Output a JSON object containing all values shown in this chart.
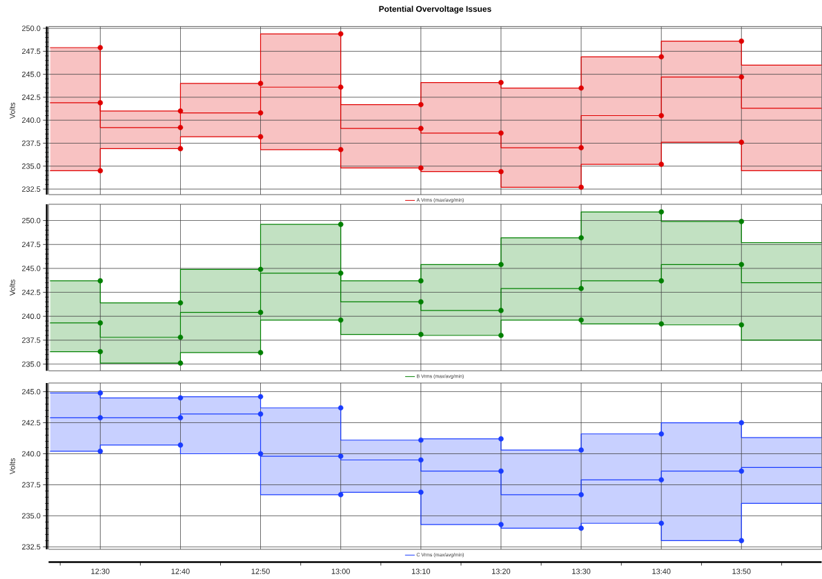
{
  "chart_data": [
    {
      "type": "step",
      "title": "Potential Overvoltage Issues",
      "ylabel": "Volts",
      "x": [
        12.396,
        12.5,
        12.6667,
        12.8333,
        13,
        13.1667,
        13.3333,
        13.5,
        13.6667,
        13.8333,
        14
      ],
      "series": [
        {
          "color": "#e00000",
          "values": [
            247.9,
            247.9,
            241.0,
            244.0,
            249.4,
            241.7,
            244.1,
            243.5,
            246.9,
            248.6,
            246.0
          ]
        },
        {
          "name": "A Vrms (max/avg/min)",
          "color": "#e00000",
          "values": [
            241.9,
            241.9,
            239.2,
            240.8,
            243.6,
            239.1,
            238.6,
            237.0,
            240.5,
            244.7,
            241.3
          ],
          "upper": [
            247.9,
            247.9,
            241.0,
            244.0,
            249.4,
            241.7,
            244.1,
            243.5,
            246.9,
            248.6,
            246.0
          ],
          "lower": [
            234.5,
            234.5,
            236.9,
            238.2,
            236.8,
            234.8,
            234.4,
            232.7,
            235.2,
            237.6,
            234.5
          ]
        },
        {
          "color": "#e00000",
          "values": [
            234.5,
            234.5,
            236.9,
            238.2,
            236.8,
            234.8,
            234.4,
            232.7,
            235.2,
            237.6,
            234.5
          ]
        }
      ],
      "xlim": [
        12.3925,
        14
      ],
      "ylim": [
        231.9,
        250.2
      ],
      "xticks": [
        {
          "value": 12.5,
          "label": null
        },
        {
          "value": 12.6667,
          "label": null
        },
        {
          "value": 12.8333,
          "label": null
        },
        {
          "value": 13,
          "label": null
        },
        {
          "value": 13.1667,
          "label": null
        },
        {
          "value": 13.3333,
          "label": null
        },
        {
          "value": 13.5,
          "label": null
        },
        {
          "value": 13.6667,
          "label": null
        },
        {
          "value": 13.8333,
          "label": null
        }
      ],
      "yticks": [
        232.5,
        {
          "value": 235,
          "label": "235.0"
        },
        237.5,
        {
          "value": 240,
          "label": "240.0"
        },
        242.5,
        {
          "value": 245,
          "label": "245.0"
        },
        247.5,
        {
          "value": 250,
          "label": "250.0"
        }
      ],
      "grid": true,
      "legend": "bottom",
      "marker": "circle",
      "tick_labels": "y"
    },
    {
      "type": "step",
      "ylabel": "Volts",
      "x": [
        12.396,
        12.5,
        12.6667,
        12.8333,
        13,
        13.1667,
        13.3333,
        13.5,
        13.6667,
        13.8333,
        14
      ],
      "series": [
        {
          "color": "#008000",
          "values": [
            243.7,
            243.7,
            241.4,
            244.9,
            249.6,
            243.7,
            245.4,
            248.2,
            250.9,
            249.9,
            247.7
          ]
        },
        {
          "name": "B Vrms (max/avg/min)",
          "color": "#008000",
          "values": [
            239.3,
            239.3,
            237.8,
            240.4,
            244.5,
            241.5,
            240.6,
            242.9,
            243.7,
            245.4,
            243.5
          ],
          "upper": [
            243.7,
            243.7,
            241.4,
            244.9,
            249.6,
            243.7,
            245.4,
            248.2,
            250.9,
            249.9,
            247.7
          ],
          "lower": [
            236.3,
            236.3,
            235.1,
            236.2,
            239.6,
            238.1,
            238.0,
            239.6,
            239.2,
            239.1,
            237.5
          ]
        },
        {
          "color": "#008000",
          "values": [
            236.3,
            236.3,
            235.1,
            236.2,
            239.6,
            238.1,
            238.0,
            239.6,
            239.2,
            239.1,
            237.5
          ]
        }
      ],
      "xlim": [
        12.3925,
        14
      ],
      "ylim": [
        234.3,
        251.7
      ],
      "xticks": [
        {
          "value": 12.5,
          "label": null
        },
        {
          "value": 12.6667,
          "label": null
        },
        {
          "value": 12.8333,
          "label": null
        },
        {
          "value": 13,
          "label": null
        },
        {
          "value": 13.1667,
          "label": null
        },
        {
          "value": 13.3333,
          "label": null
        },
        {
          "value": 13.5,
          "label": null
        },
        {
          "value": 13.6667,
          "label": null
        },
        {
          "value": 13.8333,
          "label": null
        }
      ],
      "yticks": [
        {
          "value": 235,
          "label": "235.0"
        },
        237.5,
        {
          "value": 240,
          "label": "240.0"
        },
        242.5,
        {
          "value": 245,
          "label": "245.0"
        },
        247.5,
        {
          "value": 250,
          "label": "250.0"
        }
      ],
      "grid": true,
      "legend": "bottom",
      "marker": "circle",
      "tick_labels": "y"
    },
    {
      "type": "step",
      "ylabel": "Volts",
      "x": [
        12.396,
        12.5,
        12.6667,
        12.8333,
        13,
        13.1667,
        13.3333,
        13.5,
        13.6667,
        13.8333,
        14
      ],
      "series": [
        {
          "color": "#1a3cff",
          "values": [
            244.9,
            244.9,
            244.5,
            244.6,
            243.7,
            241.1,
            241.2,
            240.3,
            241.6,
            242.5,
            241.3
          ]
        },
        {
          "name": "C Vrms (max/avg/min)",
          "color": "#1a3cff",
          "values": [
            242.9,
            242.9,
            242.9,
            243.2,
            239.8,
            239.5,
            238.6,
            236.7,
            237.9,
            238.6,
            238.9
          ],
          "upper": [
            244.9,
            244.9,
            244.5,
            244.6,
            243.7,
            241.1,
            241.2,
            240.3,
            241.6,
            242.5,
            241.3
          ],
          "lower": [
            240.2,
            240.2,
            240.7,
            240.0,
            236.7,
            236.9,
            234.3,
            234.0,
            234.4,
            233.0,
            236.0
          ]
        },
        {
          "color": "#1a3cff",
          "values": [
            240.2,
            240.2,
            240.7,
            240.0,
            236.7,
            236.9,
            234.3,
            234.0,
            234.4,
            233.0,
            236.0
          ]
        }
      ],
      "xlim": [
        12.3925,
        14
      ],
      "ylim": [
        232.3,
        245.7
      ],
      "xticks": [
        {
          "value": 12.5,
          "label": "12:30"
        },
        {
          "value": 12.6667,
          "label": "12:40"
        },
        {
          "value": 12.8333,
          "label": "12:50"
        },
        {
          "value": 13,
          "label": "13:00"
        },
        {
          "value": 13.1667,
          "label": "13:10"
        },
        {
          "value": 13.3333,
          "label": "13:20"
        },
        {
          "value": 13.5,
          "label": "13:30"
        },
        {
          "value": 13.6667,
          "label": "13:40"
        },
        {
          "value": 13.8333,
          "label": "13:50"
        }
      ],
      "yticks": [
        232.5,
        {
          "value": 235,
          "label": "235.0"
        },
        237.5,
        {
          "value": 240,
          "label": "240.0"
        },
        242.5,
        {
          "value": 245,
          "label": "245.0"
        }
      ],
      "grid": true,
      "legend": "bottom",
      "marker": "circle"
    }
  ]
}
